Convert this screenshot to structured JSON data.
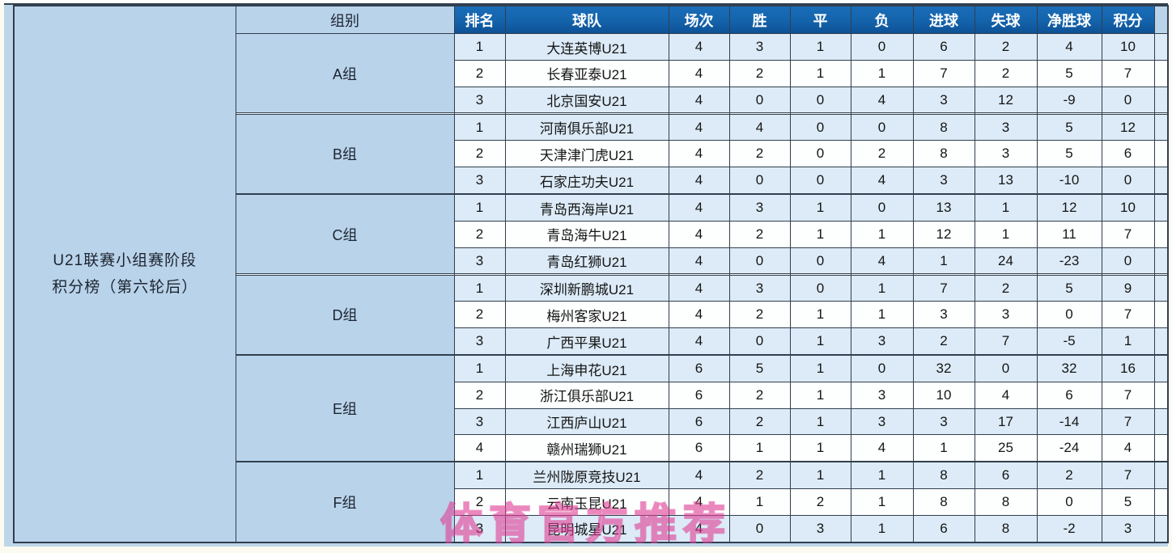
{
  "page": {
    "sidebar_title_line1": "U21联赛小组赛阶段",
    "sidebar_title_line2": "积分榜（第六轮后）",
    "watermark": "体育官方推荐"
  },
  "table": {
    "group_column_header": "组别",
    "column_headers": [
      "排名",
      "球队",
      "场次",
      "胜",
      "平",
      "负",
      "进球",
      "失球",
      "净胜球",
      "积分"
    ],
    "groups": [
      {
        "name": "A组",
        "rows": [
          [
            "1",
            "大连英博U21",
            "4",
            "3",
            "1",
            "0",
            "6",
            "2",
            "4",
            "10"
          ],
          [
            "2",
            "长春亚泰U21",
            "4",
            "2",
            "1",
            "1",
            "7",
            "2",
            "5",
            "7"
          ],
          [
            "3",
            "北京国安U21",
            "4",
            "0",
            "0",
            "4",
            "3",
            "12",
            "-9",
            "0"
          ]
        ]
      },
      {
        "name": "B组",
        "rows": [
          [
            "1",
            "河南俱乐部U21",
            "4",
            "4",
            "0",
            "0",
            "8",
            "3",
            "5",
            "12"
          ],
          [
            "2",
            "天津津门虎U21",
            "4",
            "2",
            "0",
            "2",
            "8",
            "3",
            "5",
            "6"
          ],
          [
            "3",
            "石家庄功夫U21",
            "4",
            "0",
            "0",
            "4",
            "3",
            "13",
            "-10",
            "0"
          ]
        ]
      },
      {
        "name": "C组",
        "rows": [
          [
            "1",
            "青岛西海岸U21",
            "4",
            "3",
            "1",
            "0",
            "13",
            "1",
            "12",
            "10"
          ],
          [
            "2",
            "青岛海牛U21",
            "4",
            "2",
            "1",
            "1",
            "12",
            "1",
            "11",
            "7"
          ],
          [
            "3",
            "青岛红狮U21",
            "4",
            "0",
            "0",
            "4",
            "1",
            "24",
            "-23",
            "0"
          ]
        ]
      },
      {
        "name": "D组",
        "rows": [
          [
            "1",
            "深圳新鹏城U21",
            "4",
            "3",
            "0",
            "1",
            "7",
            "2",
            "5",
            "9"
          ],
          [
            "2",
            "梅州客家U21",
            "4",
            "2",
            "1",
            "1",
            "3",
            "3",
            "0",
            "7"
          ],
          [
            "3",
            "广西平果U21",
            "4",
            "0",
            "1",
            "3",
            "2",
            "7",
            "-5",
            "1"
          ]
        ]
      },
      {
        "name": "E组",
        "rows": [
          [
            "1",
            "上海申花U21",
            "6",
            "5",
            "1",
            "0",
            "32",
            "0",
            "32",
            "16"
          ],
          [
            "2",
            "浙江俱乐部U21",
            "6",
            "2",
            "1",
            "3",
            "10",
            "4",
            "6",
            "7"
          ],
          [
            "3",
            "江西庐山U21",
            "6",
            "2",
            "1",
            "3",
            "3",
            "17",
            "-14",
            "7"
          ],
          [
            "4",
            "赣州瑞狮U21",
            "6",
            "1",
            "1",
            "4",
            "1",
            "25",
            "-24",
            "4"
          ]
        ]
      },
      {
        "name": "F组",
        "rows": [
          [
            "1",
            "兰州陇原竞技U21",
            "4",
            "2",
            "1",
            "1",
            "8",
            "6",
            "2",
            "7"
          ],
          [
            "2",
            "云南玉昆U21",
            "4",
            "1",
            "2",
            "1",
            "8",
            "8",
            "0",
            "5"
          ],
          [
            "3",
            "昆明城星U21",
            "4",
            "0",
            "3",
            "1",
            "6",
            "8",
            "-2",
            "3"
          ]
        ]
      }
    ]
  },
  "colors": {
    "header_bg": "#1463ab",
    "header_text": "#ffffff",
    "panel_blue": "#b9d3ea",
    "stripe_blue": "#dcebf7",
    "row_white": "#fdfefe",
    "border_dark": "#313f4e",
    "canvas_blue": "#bdd6ea",
    "watermark_pink": "#de3c94"
  }
}
